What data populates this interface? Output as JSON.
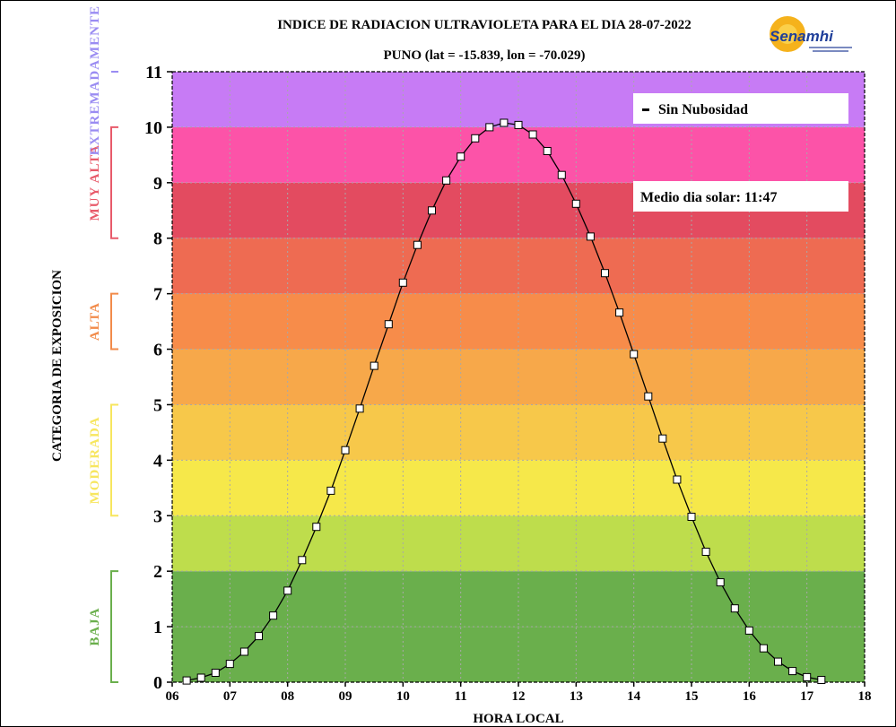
{
  "header": {
    "title": "INDICE DE RADIACION ULTRAVIOLETA PARA EL DIA 28-07-2022",
    "subtitle": "PUNO (lat = -15.839, lon = -70.029)",
    "logo_text": "Senamhi"
  },
  "legend": {
    "series_label": "Sin Nubosidad",
    "solar_noon_label": "Medio dia solar: 11:47"
  },
  "colors": {
    "bands": [
      "#6aaf4c",
      "#6aaf4c",
      "#bedd4c",
      "#f6e84a",
      "#f7c84a",
      "#f7a84a",
      "#f78c4a",
      "#ee6b52",
      "#e34b60",
      "#fc53a8",
      "#c77bf5"
    ],
    "cat_baja": "#6aaf4c",
    "cat_moderada": "#f7e65e",
    "cat_alta": "#f28b4a",
    "cat_muy_alta": "#e85a6a",
    "cat_extremadamente": "#9a8cf2"
  },
  "categories": [
    {
      "key": "baja",
      "label": "BAJA",
      "range": [
        0,
        2
      ]
    },
    {
      "key": "moderada",
      "label": "MODERADA",
      "range": [
        3,
        5
      ]
    },
    {
      "key": "alta",
      "label": "ALTA",
      "range": [
        6,
        7
      ]
    },
    {
      "key": "muy_alta",
      "label": "MUY ALTA",
      "range": [
        8,
        10
      ]
    },
    {
      "key": "extremadamente",
      "label": "EXTREMADAMENTE",
      "range": [
        11,
        11
      ]
    }
  ],
  "chart_data": {
    "type": "line",
    "title": "INDICE DE RADIACION ULTRAVIOLETA PARA EL DIA 28-07-2022",
    "subtitle": "PUNO (lat = -15.839, lon = -70.029)",
    "xlabel": "HORA LOCAL",
    "ylabel": "CATEGORIA DE EXPOSICION",
    "xlim": [
      6,
      18
    ],
    "ylim": [
      0,
      11
    ],
    "x_tick_labels": [
      "06",
      "07",
      "08",
      "09",
      "10",
      "11",
      "12",
      "13",
      "14",
      "15",
      "16",
      "17",
      "18"
    ],
    "y_tick_labels": [
      "0",
      "1",
      "2",
      "3",
      "4",
      "5",
      "6",
      "7",
      "8",
      "9",
      "10",
      "11"
    ],
    "grid": true,
    "legend_position": "top-right",
    "series": [
      {
        "name": "Sin Nubosidad",
        "x": [
          6.25,
          6.5,
          6.75,
          7.0,
          7.25,
          7.5,
          7.75,
          8.0,
          8.25,
          8.5,
          8.75,
          9.0,
          9.25,
          9.5,
          9.75,
          10.0,
          10.25,
          10.5,
          10.75,
          11.0,
          11.25,
          11.5,
          11.75,
          12.0,
          12.25,
          12.5,
          12.75,
          13.0,
          13.25,
          13.5,
          13.75,
          14.0,
          14.25,
          14.5,
          14.75,
          15.0,
          15.25,
          15.5,
          15.75,
          16.0,
          16.25,
          16.5,
          16.75,
          17.0,
          17.25
        ],
        "y": [
          0.03,
          0.08,
          0.17,
          0.33,
          0.55,
          0.83,
          1.2,
          1.65,
          2.2,
          2.8,
          3.45,
          4.18,
          4.93,
          5.7,
          6.45,
          7.2,
          7.88,
          8.5,
          9.04,
          9.47,
          9.8,
          10.0,
          10.08,
          10.04,
          9.87,
          9.57,
          9.14,
          8.62,
          8.03,
          7.37,
          6.66,
          5.91,
          5.15,
          4.39,
          3.65,
          2.98,
          2.35,
          1.8,
          1.33,
          0.93,
          0.61,
          0.37,
          0.2,
          0.09,
          0.04
        ]
      }
    ]
  }
}
